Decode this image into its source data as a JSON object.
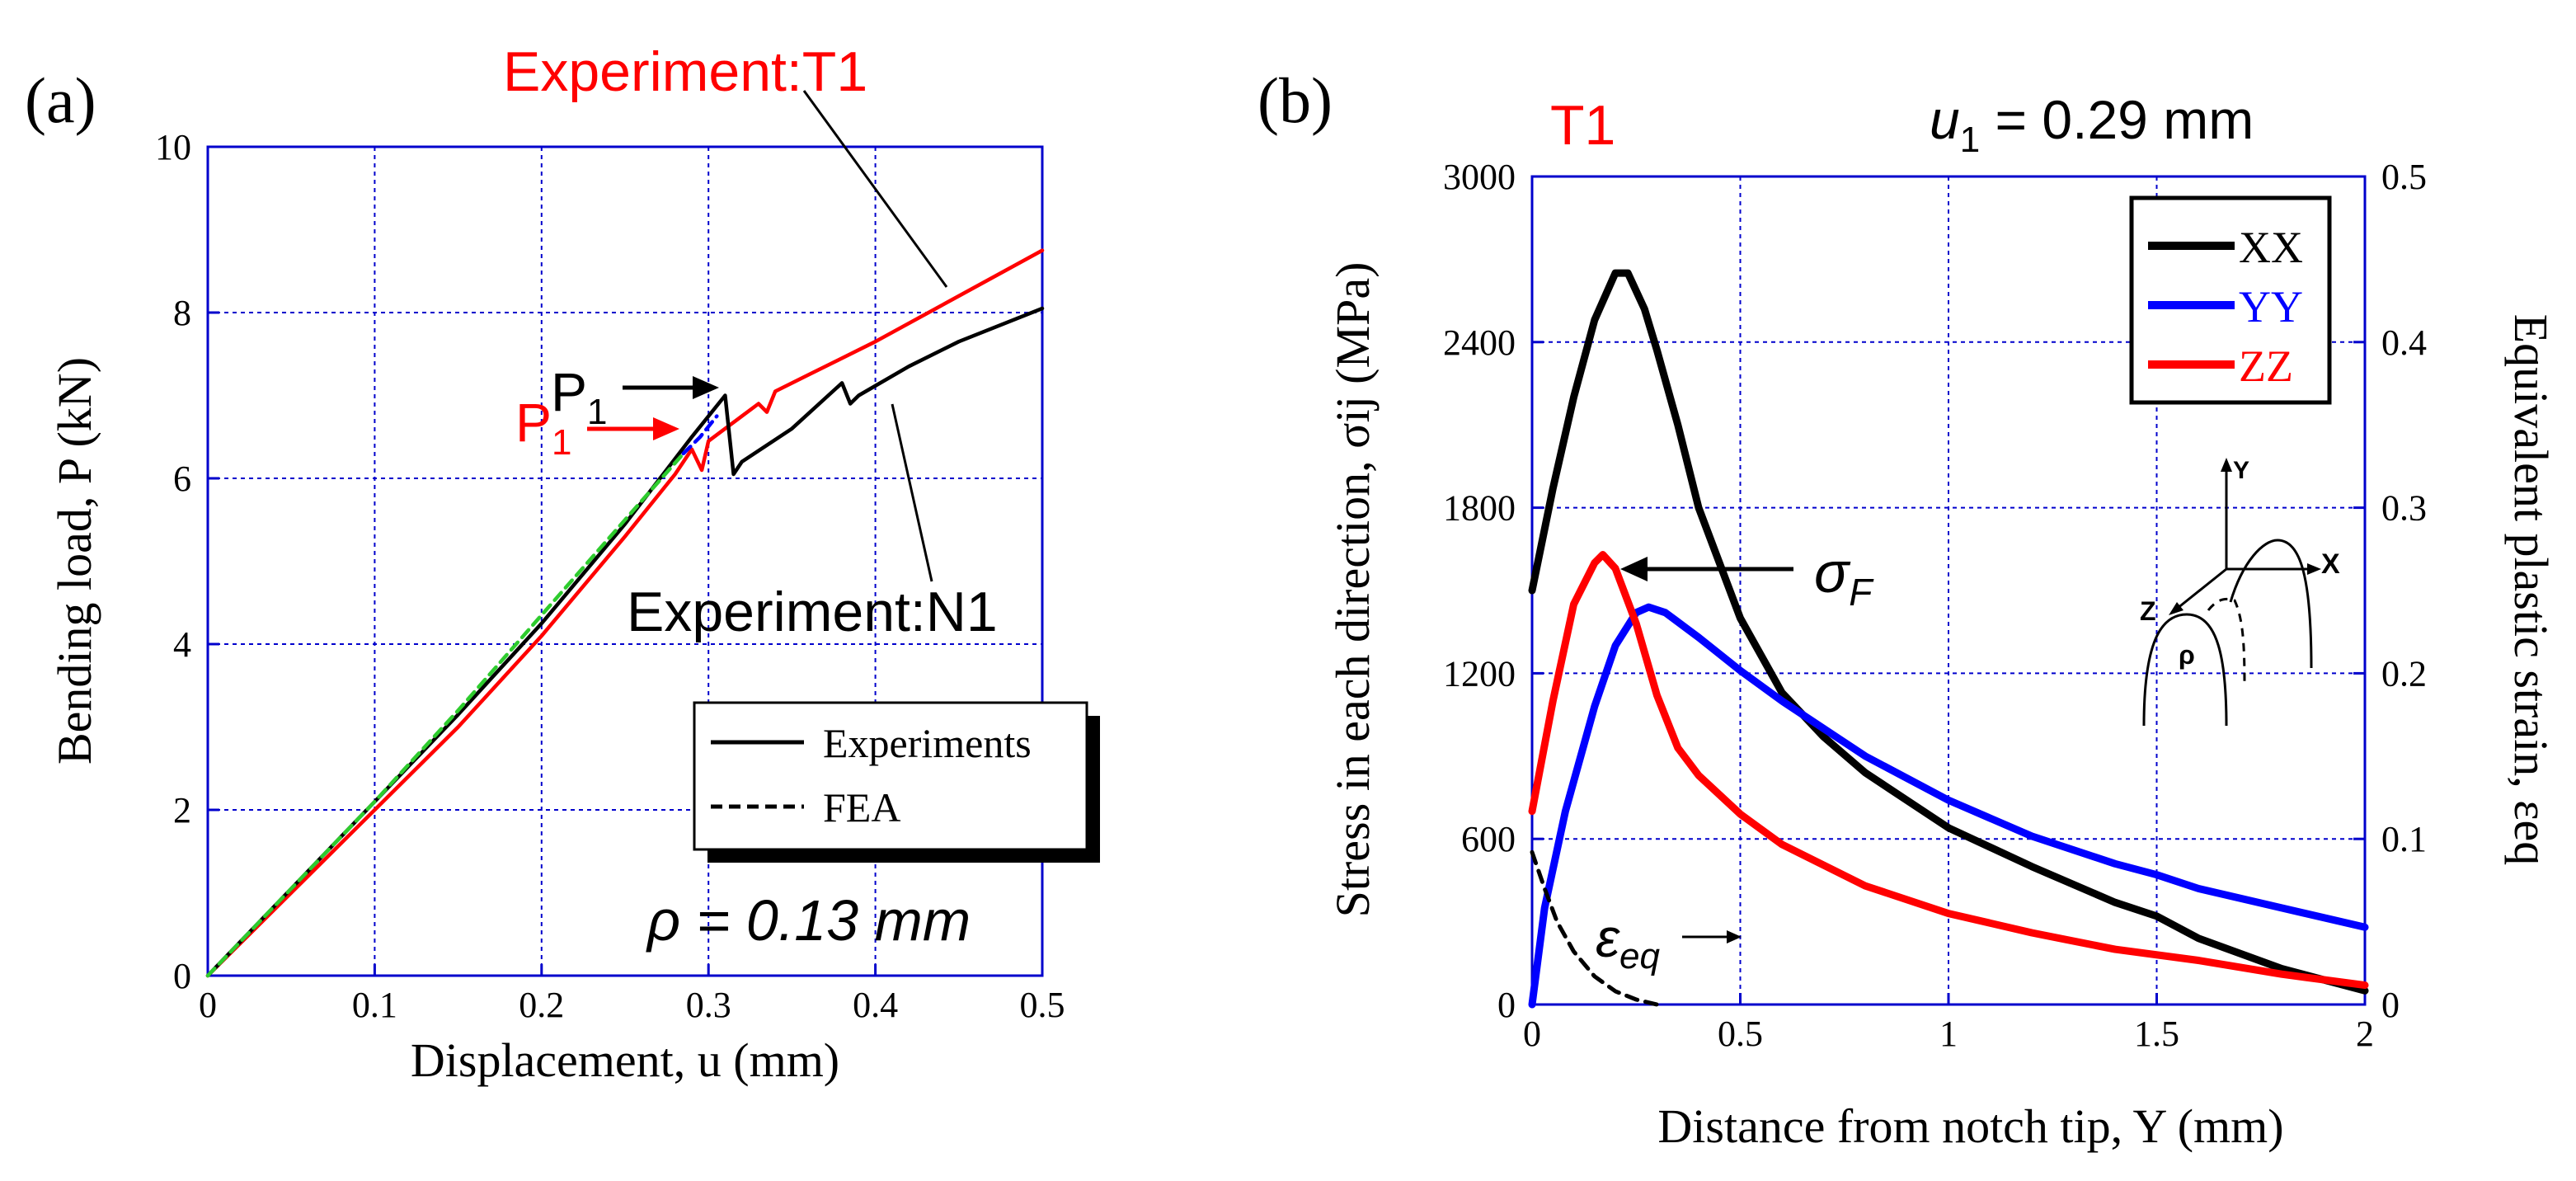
{
  "panels": {
    "a": {
      "label": "(a)",
      "ann_t1": "Experiment:T1",
      "ann_n1": "Experiment:N1",
      "ann_p1": "P",
      "ann_p1_sub": "1",
      "ann_rho": "ρ = 0.13 mm",
      "legend": {
        "exp_label": "Experiments",
        "fea_label": "FEA"
      }
    },
    "b": {
      "label": "(b)",
      "ann_t1": "T1",
      "ann_u1_var": "u",
      "ann_u1_sub": "1",
      "ann_u1_val": " = 0.29 mm",
      "ann_sigma": "σ",
      "ann_sigma_sub": "F",
      "ann_eps": "ε",
      "ann_eps_sub": "eq",
      "legend": [
        "XX",
        "YY",
        "ZZ"
      ],
      "inset": {
        "y": "Y",
        "x": "X",
        "z": "Z",
        "rho": "ρ"
      }
    }
  },
  "colors": {
    "black": "#000000",
    "red": "#ff0000",
    "blue": "#0000ff",
    "green": "#2ecc2e",
    "axis_blue": "#0000cc",
    "grid_blue": "#0000cc"
  },
  "chart_data": [
    {
      "type": "line",
      "xlabel": "Displacement, u (mm)",
      "ylabel": "Bending load, P (kN)",
      "xlim": [
        0,
        0.5
      ],
      "ylim": [
        0,
        10
      ],
      "xticks": [
        "0",
        "0.1",
        "0.2",
        "0.3",
        "0.4",
        "0.5"
      ],
      "yticks": [
        "0",
        "2",
        "4",
        "6",
        "8",
        "10"
      ],
      "grid": true,
      "legend_position": "right",
      "series": [
        {
          "name": "Experiment:T1",
          "color": "#ff0000",
          "style": "solid",
          "x": [
            0,
            0.05,
            0.1,
            0.15,
            0.2,
            0.25,
            0.28,
            0.29,
            0.296,
            0.3,
            0.31,
            0.32,
            0.33,
            0.335,
            0.34,
            0.36,
            0.4,
            0.45,
            0.5
          ],
          "y": [
            0,
            1.0,
            2.0,
            3.0,
            4.1,
            5.3,
            6.05,
            6.35,
            6.1,
            6.45,
            6.6,
            6.75,
            6.9,
            6.8,
            7.05,
            7.25,
            7.65,
            8.2,
            8.75
          ]
        },
        {
          "name": "Experiment:N1",
          "color": "#000000",
          "style": "solid",
          "x": [
            0,
            0.05,
            0.1,
            0.15,
            0.2,
            0.25,
            0.29,
            0.31,
            0.315,
            0.32,
            0.35,
            0.38,
            0.385,
            0.39,
            0.42,
            0.45,
            0.5
          ],
          "y": [
            0,
            1.05,
            2.1,
            3.15,
            4.25,
            5.45,
            6.5,
            7.0,
            6.05,
            6.2,
            6.6,
            7.15,
            6.9,
            7.0,
            7.35,
            7.65,
            8.05
          ]
        },
        {
          "name": "FEA",
          "color": "#2ecc2e",
          "style": "dashed",
          "x": [
            0,
            0.05,
            0.1,
            0.15,
            0.2,
            0.25,
            0.285
          ],
          "y": [
            0,
            1.05,
            2.1,
            3.2,
            4.35,
            5.5,
            6.3
          ]
        },
        {
          "name": "FEA",
          "color": "#0000ff",
          "style": "dashed",
          "x": [
            0.285,
            0.295,
            0.305
          ],
          "y": [
            6.3,
            6.5,
            6.75
          ]
        }
      ]
    },
    {
      "type": "line",
      "xlabel": "Distance from notch tip, Y (mm)",
      "ylabel": "Stress in each direction, σij (MPa)",
      "y2label": "Equivalent plastic strain, εeq",
      "xlim": [
        0,
        2
      ],
      "ylim": [
        0,
        3000
      ],
      "y2lim": [
        0,
        0.5
      ],
      "xticks": [
        "0",
        "0.5",
        "1",
        "1.5",
        "2"
      ],
      "yticks": [
        "0",
        "600",
        "1200",
        "1800",
        "2400",
        "3000"
      ],
      "y2ticks": [
        "0",
        "0.1",
        "0.2",
        "0.3",
        "0.4",
        "0.5"
      ],
      "grid": true,
      "legend_position": "top-right",
      "series": [
        {
          "name": "XX",
          "color": "#000000",
          "x": [
            0,
            0.05,
            0.1,
            0.15,
            0.2,
            0.23,
            0.27,
            0.3,
            0.35,
            0.4,
            0.5,
            0.6,
            0.7,
            0.8,
            1.0,
            1.2,
            1.4,
            1.5,
            1.6,
            1.8,
            2.0
          ],
          "y": [
            1500,
            1870,
            2200,
            2480,
            2650,
            2650,
            2520,
            2370,
            2100,
            1800,
            1400,
            1130,
            970,
            840,
            640,
            500,
            370,
            320,
            240,
            130,
            50
          ]
        },
        {
          "name": "YY",
          "color": "#0000ff",
          "x": [
            0,
            0.03,
            0.08,
            0.15,
            0.2,
            0.25,
            0.28,
            0.32,
            0.4,
            0.5,
            0.6,
            0.8,
            1.0,
            1.2,
            1.4,
            1.5,
            1.6,
            1.8,
            2.0
          ],
          "y": [
            0,
            350,
            700,
            1080,
            1300,
            1420,
            1440,
            1420,
            1330,
            1210,
            1100,
            900,
            740,
            610,
            510,
            470,
            420,
            350,
            280
          ]
        },
        {
          "name": "ZZ",
          "color": "#ff0000",
          "x": [
            0,
            0.05,
            0.1,
            0.15,
            0.17,
            0.2,
            0.25,
            0.3,
            0.35,
            0.4,
            0.5,
            0.6,
            0.8,
            1.0,
            1.2,
            1.4,
            1.6,
            1.8,
            2.0
          ],
          "y": [
            700,
            1100,
            1450,
            1600,
            1630,
            1580,
            1380,
            1120,
            930,
            830,
            690,
            580,
            430,
            330,
            260,
            200,
            160,
            110,
            70
          ]
        },
        {
          "name": "εeq",
          "color": "#000000",
          "axis": "y2",
          "x": [
            0,
            0.03,
            0.06,
            0.1,
            0.15,
            0.2,
            0.25,
            0.3
          ],
          "y": [
            0.092,
            0.07,
            0.05,
            0.032,
            0.017,
            0.008,
            0.003,
            0
          ]
        }
      ]
    }
  ]
}
